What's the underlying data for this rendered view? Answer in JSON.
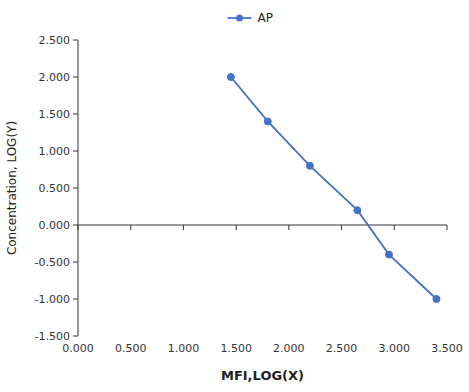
{
  "chart_data": {
    "type": "line",
    "x": [
      1.45,
      1.8,
      2.2,
      2.65,
      2.95,
      3.4
    ],
    "series": [
      {
        "name": "AP",
        "color": "#4472C4",
        "marker": "circle",
        "line_style": "solid",
        "values": [
          2.0,
          1.4,
          0.8,
          0.2,
          -0.4,
          -1.0
        ]
      }
    ],
    "xlabel": "MFI,LOG(X)",
    "ylabel": "Concentration, LOG(Y)",
    "xlim": [
      0.0,
      3.5
    ],
    "ylim": [
      -1.5,
      2.5
    ],
    "xticks": [
      {
        "value": 0.0,
        "label": "0.000"
      },
      {
        "value": 0.5,
        "label": "0.500"
      },
      {
        "value": 1.0,
        "label": "1.000"
      },
      {
        "value": 1.5,
        "label": "1.500"
      },
      {
        "value": 2.0,
        "label": "2.000"
      },
      {
        "value": 2.5,
        "label": "2.500"
      },
      {
        "value": 3.0,
        "label": "3.000"
      },
      {
        "value": 3.5,
        "label": "3.500"
      }
    ],
    "yticks": [
      {
        "value": -1.5,
        "label": "-1.500"
      },
      {
        "value": -1.0,
        "label": "-1.000"
      },
      {
        "value": -0.5,
        "label": "-0.500"
      },
      {
        "value": 0.0,
        "label": "0.000"
      },
      {
        "value": 0.5,
        "label": "0.500"
      },
      {
        "value": 1.0,
        "label": "1.000"
      },
      {
        "value": 1.5,
        "label": "1.500"
      },
      {
        "value": 2.0,
        "label": "2.000"
      },
      {
        "value": 2.5,
        "label": "2.500"
      }
    ],
    "grid": false,
    "legend": "top"
  }
}
